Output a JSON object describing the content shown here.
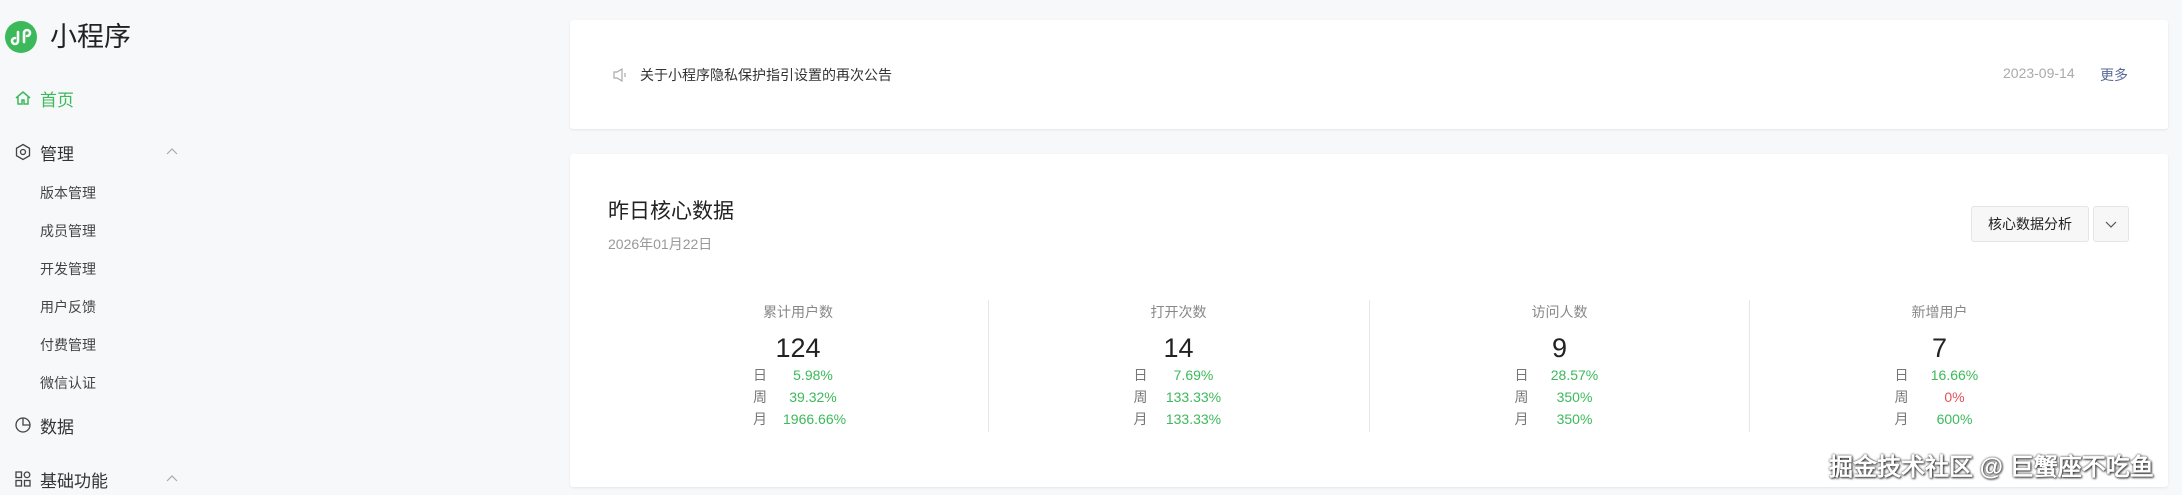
{
  "app": {
    "title": "小程序",
    "logo_icon": "miniprogram-logo",
    "brand_color": "#3cb95b"
  },
  "sidebar": {
    "home": "首页",
    "manage": {
      "label": "管理",
      "items": [
        "版本管理",
        "成员管理",
        "开发管理",
        "用户反馈",
        "付费管理",
        "微信认证"
      ]
    },
    "data": "数据",
    "basic": "基础功能"
  },
  "notice": {
    "icon": "speaker-icon",
    "text": "关于小程序隐私保护指引设置的再次公告",
    "date": "2023-09-14",
    "more": "更多"
  },
  "core": {
    "title": "昨日核心数据",
    "date": "2026年01月22日",
    "analysis_button": "核心数据分析",
    "labels": {
      "day": "日",
      "week": "周",
      "month": "月"
    },
    "metrics": [
      {
        "label": "累计用户数",
        "value": "124",
        "day": "5.98%",
        "week": "39.32%",
        "month": "1966.66%"
      },
      {
        "label": "打开次数",
        "value": "14",
        "day": "7.69%",
        "week": "133.33%",
        "month": "133.33%"
      },
      {
        "label": "访问人数",
        "value": "9",
        "day": "28.57%",
        "week": "350%",
        "month": "350%"
      },
      {
        "label": "新增用户",
        "value": "7",
        "day": "16.66%",
        "week": "0%",
        "month": "600%"
      }
    ]
  },
  "colors": {
    "positive": "#3cb95b",
    "zero": "#e5505a"
  },
  "watermark": "掘金技术社区 @ 巨蟹座不吃鱼"
}
